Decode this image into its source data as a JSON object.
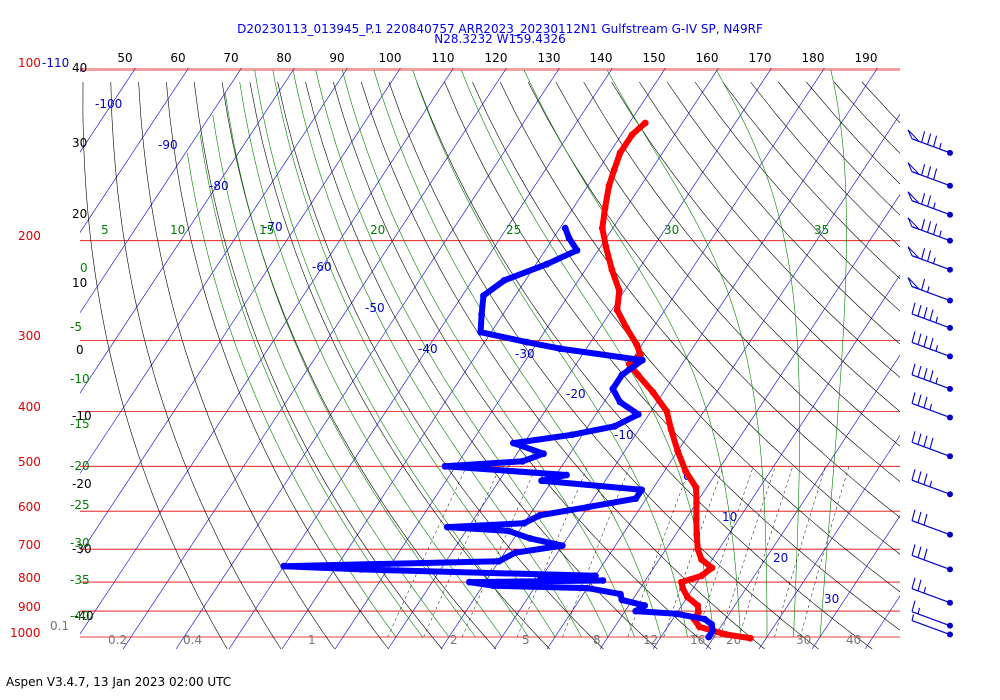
{
  "header": {
    "line1": "D20230113_013945_P.1 220840757 ARR2023_20230112N1 Gulfstream G-IV SP, N49RF",
    "line2": "N28.3232 W159.4326"
  },
  "footer": "Aspen V3.4.7, 13 Jan 2023  02:00 UTC",
  "colors": {
    "isobar": "#e00000",
    "isotherm": "#0000c8",
    "dry_adiabat": "#000000",
    "moist_adiabat": "#008000",
    "mixing_ratio": "#000000",
    "temperature": "#ff0000",
    "dewpoint": "#0000ff",
    "wind_barb": "#0000c8"
  },
  "chart_data": {
    "type": "line",
    "subtype": "skew-T log-P",
    "pressure_labels": [
      "100-110",
      "200",
      "300",
      "400",
      "500",
      "600",
      "700",
      "800",
      "900",
      "1000"
    ],
    "pressure_levels": [
      100,
      200,
      300,
      400,
      500,
      600,
      700,
      800,
      900,
      1000
    ],
    "top_axis_ticks": [
      "50",
      "60",
      "70",
      "80",
      "90",
      "100",
      "110",
      "120",
      "130",
      "140",
      "150",
      "160",
      "170",
      "180",
      "190"
    ],
    "height_labels": [
      "40",
      "30",
      "20",
      "10",
      "0",
      "-10",
      "-20",
      "-30",
      "-40"
    ],
    "isotherm_labels": [
      "-100",
      "-90",
      "-80",
      "-70",
      "-60",
      "-50",
      "-40",
      "-30",
      "-20",
      "-10",
      "0",
      "10",
      "20",
      "30"
    ],
    "moist_adiabat_labels": [
      "5",
      "10",
      "15",
      "20",
      "25",
      "30",
      "35"
    ],
    "left_green_labels": [
      "0",
      "-5",
      "-10",
      "-15",
      "-20",
      "-25",
      "-30",
      "-35",
      "-40"
    ],
    "mixing_ratio_labels": [
      "0.1",
      "0.2",
      "0.4",
      "1",
      "2",
      "5",
      "8",
      "12",
      "16",
      "20",
      "30",
      "40"
    ],
    "series": [
      {
        "name": "",
        "color": "#ff0000",
        "points": [
          [
            1005,
            27
          ],
          [
            990,
            22
          ],
          [
            960,
            16
          ],
          [
            930,
            14
          ],
          [
            905,
            14
          ],
          [
            880,
            13
          ],
          [
            850,
            10
          ],
          [
            820,
            8
          ],
          [
            800,
            7
          ],
          [
            780,
            10
          ],
          [
            755,
            11
          ],
          [
            730,
            8
          ],
          [
            700,
            6
          ],
          [
            660,
            4
          ],
          [
            620,
            2
          ],
          [
            580,
            0
          ],
          [
            545,
            -2
          ],
          [
            510,
            -6
          ],
          [
            470,
            -10
          ],
          [
            430,
            -14
          ],
          [
            400,
            -17
          ],
          [
            370,
            -22
          ],
          [
            345,
            -27
          ],
          [
            330,
            -30
          ],
          [
            318,
            -29
          ],
          [
            305,
            -31
          ],
          [
            285,
            -35
          ],
          [
            265,
            -39
          ],
          [
            245,
            -41
          ],
          [
            225,
            -45
          ],
          [
            205,
            -49
          ],
          [
            190,
            -52
          ],
          [
            175,
            -54
          ],
          [
            160,
            -56
          ],
          [
            150,
            -57
          ],
          [
            140,
            -58
          ],
          [
            130,
            -58
          ],
          [
            124,
            -57
          ]
        ]
      },
      {
        "name": "",
        "color": "#0000ff",
        "points": [
          [
            1000,
            19
          ],
          [
            975,
            19
          ],
          [
            950,
            18
          ],
          [
            930,
            16
          ],
          [
            910,
            10
          ],
          [
            900,
            2
          ],
          [
            880,
            3
          ],
          [
            860,
            -2
          ],
          [
            840,
            -3
          ],
          [
            820,
            -10
          ],
          [
            812,
            -28
          ],
          [
            800,
            -33
          ],
          [
            795,
            -8
          ],
          [
            790,
            -20
          ],
          [
            780,
            -10
          ],
          [
            760,
            -55
          ],
          [
            750,
            -70
          ],
          [
            735,
            -30
          ],
          [
            710,
            -28
          ],
          [
            690,
            -20
          ],
          [
            670,
            -27
          ],
          [
            650,
            -32
          ],
          [
            640,
            -44
          ],
          [
            630,
            -30
          ],
          [
            610,
            -28
          ],
          [
            590,
            -20
          ],
          [
            570,
            -12
          ],
          [
            550,
            -12
          ],
          [
            530,
            -32
          ],
          [
            518,
            -28
          ],
          [
            500,
            -52
          ],
          [
            490,
            -38
          ],
          [
            475,
            -35
          ],
          [
            455,
            -42
          ],
          [
            440,
            -32
          ],
          [
            425,
            -25
          ],
          [
            405,
            -22
          ],
          [
            385,
            -27
          ],
          [
            365,
            -30
          ],
          [
            345,
            -30
          ],
          [
            325,
            -28
          ],
          [
            310,
            -45
          ],
          [
            302,
            -52
          ],
          [
            290,
            -62
          ],
          [
            270,
            -64
          ],
          [
            250,
            -66
          ],
          [
            235,
            -64
          ],
          [
            220,
            -58
          ],
          [
            208,
            -54
          ],
          [
            198,
            -57
          ],
          [
            190,
            -59
          ]
        ]
      }
    ],
    "wind_barbs": [
      {
        "p": 140,
        "flags": 1,
        "barbs": 3,
        "half": true
      },
      {
        "p": 160,
        "flags": 1,
        "barbs": 3,
        "half": false
      },
      {
        "p": 180,
        "flags": 1,
        "barbs": 2,
        "half": true
      },
      {
        "p": 200,
        "flags": 1,
        "barbs": 3,
        "half": true
      },
      {
        "p": 225,
        "flags": 1,
        "barbs": 2,
        "half": true
      },
      {
        "p": 255,
        "flags": 1,
        "barbs": 1,
        "half": true
      },
      {
        "p": 285,
        "flags": 0,
        "barbs": 4,
        "half": true
      },
      {
        "p": 320,
        "flags": 0,
        "barbs": 4,
        "half": true
      },
      {
        "p": 365,
        "flags": 0,
        "barbs": 4,
        "half": true
      },
      {
        "p": 410,
        "flags": 0,
        "barbs": 3,
        "half": true
      },
      {
        "p": 480,
        "flags": 0,
        "barbs": 4,
        "half": false
      },
      {
        "p": 560,
        "flags": 0,
        "barbs": 3,
        "half": true
      },
      {
        "p": 660,
        "flags": 0,
        "barbs": 3,
        "half": false
      },
      {
        "p": 760,
        "flags": 0,
        "barbs": 3,
        "half": false
      },
      {
        "p": 870,
        "flags": 0,
        "barbs": 2,
        "half": true
      },
      {
        "p": 955,
        "flags": 0,
        "barbs": 1,
        "half": true
      },
      {
        "p": 990,
        "flags": 0,
        "barbs": 0,
        "half": true
      }
    ]
  }
}
